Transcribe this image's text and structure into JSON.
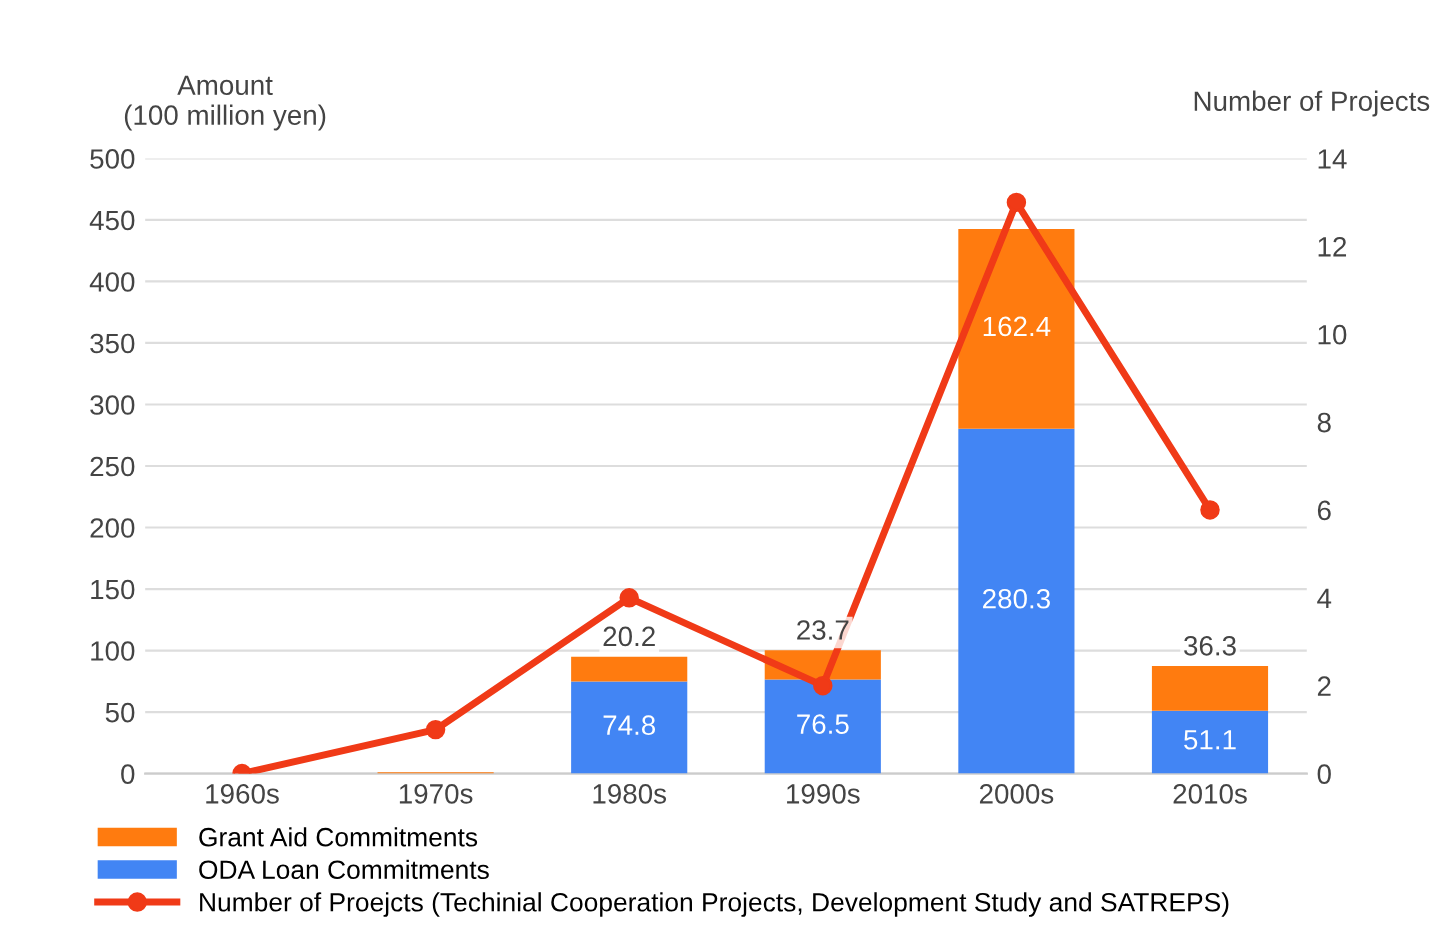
{
  "chart_data": {
    "type": "bar",
    "stacked": true,
    "categories": [
      "1960s",
      "1970s",
      "1980s",
      "1990s",
      "2000s",
      "2010s"
    ],
    "ylabel": "Amount\n(100 million yen)",
    "y2label": "Number of Projects",
    "ylim": [
      0,
      500
    ],
    "yticks": [
      0,
      50,
      100,
      150,
      200,
      250,
      300,
      350,
      400,
      450,
      500
    ],
    "y2lim": [
      0,
      14
    ],
    "y2ticks": [
      0,
      2,
      4,
      6,
      8,
      10,
      12,
      14
    ],
    "grid": "y",
    "legend": "bottom",
    "series": [
      {
        "name": "ODA Loan Commitments",
        "color": "#4285f4",
        "values": [
          0,
          0,
          74.8,
          76.5,
          280.3,
          51.1
        ],
        "value_labels": [
          null,
          null,
          "74.8",
          "76.5",
          "280.3",
          "51.1"
        ]
      },
      {
        "name": "Grant Aid Commitments",
        "color": "#ff7b0f",
        "values": [
          0,
          1,
          20.2,
          23.7,
          162.4,
          36.3
        ],
        "value_labels": [
          null,
          null,
          "20.2",
          "23.7",
          "162.4",
          "36.3"
        ]
      },
      {
        "name": "Number of Proejcts (Techinial Cooperation Projects, Development Study and SATREPS)",
        "type": "line",
        "axis": "y2",
        "color": "#f03a17",
        "marker": "circle",
        "line_style": "solid",
        "values": [
          0,
          1,
          4,
          2,
          13,
          6
        ]
      }
    ]
  }
}
